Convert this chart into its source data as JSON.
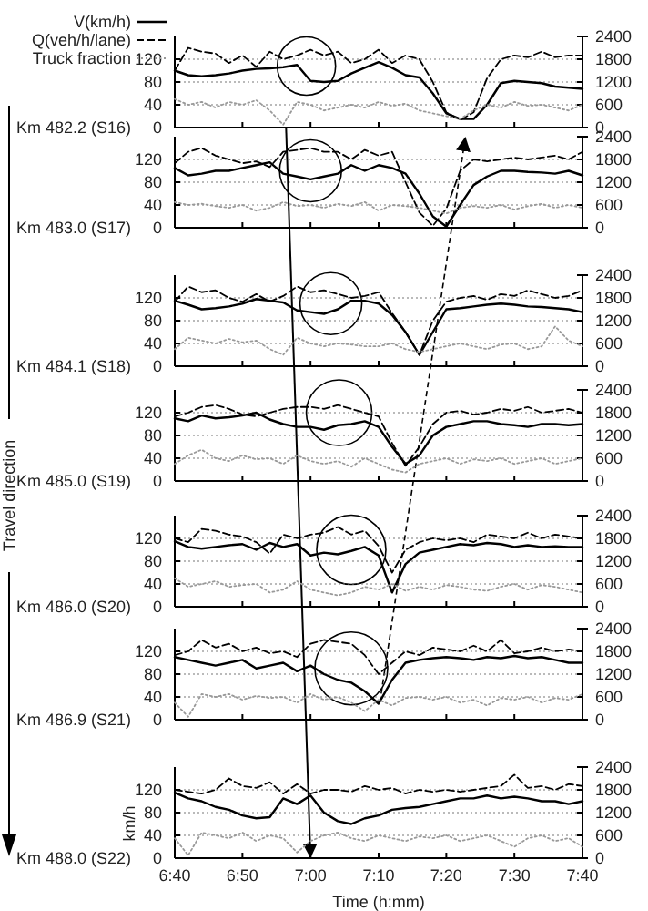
{
  "chart_data": [
    {
      "type": "line",
      "title": "Km 482.2 (S16)",
      "legend": "top left",
      "annotations": [
        "Travel direction"
      ],
      "grid": "y",
      "tick_labels": "y",
      "xlim": [
        6.667,
        7.667
      ],
      "xticks": [
        {
          "value": 6.667,
          "label": null
        },
        {
          "value": 6.833,
          "label": null
        },
        {
          "value": 7,
          "label": null
        },
        {
          "value": 7.167,
          "label": null
        },
        {
          "value": 7.333,
          "label": null
        },
        {
          "value": 7.5,
          "label": null
        },
        {
          "value": 7.667,
          "label": null
        }
      ],
      "ylim": [
        0,
        160
      ],
      "yticks": [
        0,
        40,
        80,
        120
      ],
      "y2lim": [
        0,
        2400
      ],
      "y2ticks": [
        0,
        600,
        1200,
        1800,
        2400
      ],
      "x": [
        6.667,
        6.7,
        6.733,
        6.767,
        6.8,
        6.833,
        6.867,
        6.9,
        6.933,
        6.967,
        7,
        7.033,
        7.067,
        7.1,
        7.133,
        7.167,
        7.2,
        7.233,
        7.267,
        7.3,
        7.333,
        7.367,
        7.4,
        7.433,
        7.467,
        7.5,
        7.533,
        7.567,
        7.6,
        7.633,
        7.667
      ],
      "series": [
        {
          "name": "V(km/h)",
          "color": "#000000",
          "line_style": "solid",
          "values": [
            100,
            92,
            90,
            92,
            95,
            100,
            103,
            104,
            106,
            110,
            82,
            80,
            82,
            95,
            105,
            115,
            105,
            92,
            88,
            60,
            25,
            15,
            15,
            40,
            78,
            82,
            80,
            78,
            72,
            70,
            68
          ]
        },
        {
          "name": "Q(veh/h/lane)",
          "color": "#000000",
          "line_style": "dashed",
          "axis": "y2",
          "values": [
            1500,
            2100,
            2000,
            1950,
            1700,
            1900,
            1600,
            2000,
            1800,
            1900,
            2050,
            1900,
            2000,
            1700,
            1800,
            2050,
            1700,
            1900,
            1800,
            1200,
            400,
            200,
            400,
            1300,
            1800,
            1900,
            1850,
            2000,
            1850,
            1900,
            1900
          ]
        },
        {
          "name": "Truck fraction",
          "color": "#999999",
          "line_style": "dotted",
          "values": [
            50,
            40,
            45,
            35,
            45,
            40,
            48,
            30,
            5,
            45,
            40,
            30,
            35,
            40,
            35,
            45,
            38,
            42,
            30,
            25,
            20,
            15,
            30,
            40,
            35,
            45,
            38,
            40,
            35,
            30,
            40
          ]
        }
      ]
    },
    {
      "type": "line",
      "title": "Km 483.0 (S17)",
      "grid": "y",
      "tick_labels": "y",
      "xlim": [
        6.667,
        7.667
      ],
      "xticks": [
        {
          "value": 6.667,
          "label": null
        },
        {
          "value": 6.833,
          "label": null
        },
        {
          "value": 7,
          "label": null
        },
        {
          "value": 7.167,
          "label": null
        },
        {
          "value": 7.333,
          "label": null
        },
        {
          "value": 7.5,
          "label": null
        },
        {
          "value": 7.667,
          "label": null
        }
      ],
      "ylim": [
        0,
        160
      ],
      "yticks": [
        0,
        40,
        80,
        120
      ],
      "y2lim": [
        0,
        2400
      ],
      "y2ticks": [
        0,
        600,
        1200,
        1800,
        2400
      ],
      "x": [
        6.667,
        6.7,
        6.733,
        6.767,
        6.8,
        6.833,
        6.867,
        6.9,
        6.933,
        6.967,
        7,
        7.033,
        7.067,
        7.1,
        7.133,
        7.167,
        7.2,
        7.233,
        7.267,
        7.3,
        7.333,
        7.367,
        7.4,
        7.433,
        7.467,
        7.5,
        7.533,
        7.567,
        7.6,
        7.633,
        7.667
      ],
      "series": [
        {
          "color": "#000000",
          "line_style": "solid",
          "values": [
            105,
            92,
            95,
            100,
            100,
            105,
            110,
            115,
            95,
            90,
            85,
            90,
            95,
            110,
            100,
            110,
            105,
            95,
            60,
            20,
            2,
            40,
            75,
            90,
            100,
            100,
            98,
            97,
            95,
            100,
            92
          ]
        },
        {
          "color": "#000000",
          "line_style": "dashed",
          "axis": "y2",
          "values": [
            1700,
            2000,
            2100,
            1900,
            1800,
            1700,
            1750,
            1600,
            2000,
            2050,
            2100,
            2000,
            2000,
            1800,
            2050,
            1900,
            2000,
            1200,
            400,
            50,
            500,
            1500,
            1800,
            1750,
            1800,
            1850,
            1800,
            1850,
            1900,
            1800,
            2000
          ]
        },
        {
          "color": "#999999",
          "line_style": "dotted",
          "values": [
            45,
            40,
            42,
            38,
            35,
            40,
            30,
            35,
            45,
            38,
            40,
            35,
            42,
            38,
            45,
            30,
            40,
            38,
            35,
            30,
            25,
            35,
            38,
            35,
            40,
            32,
            38,
            42,
            35,
            40,
            35
          ]
        }
      ]
    },
    {
      "type": "line",
      "title": "Km 484.1 (S18)",
      "grid": "y",
      "tick_labels": "y",
      "xlim": [
        6.667,
        7.667
      ],
      "xticks": [
        {
          "value": 6.667,
          "label": null
        },
        {
          "value": 6.833,
          "label": null
        },
        {
          "value": 7,
          "label": null
        },
        {
          "value": 7.167,
          "label": null
        },
        {
          "value": 7.333,
          "label": null
        },
        {
          "value": 7.5,
          "label": null
        },
        {
          "value": 7.667,
          "label": null
        }
      ],
      "ylim": [
        0,
        160
      ],
      "yticks": [
        0,
        40,
        80,
        120
      ],
      "y2lim": [
        0,
        2400
      ],
      "y2ticks": [
        0,
        600,
        1200,
        1800,
        2400
      ],
      "x": [
        6.667,
        6.7,
        6.733,
        6.767,
        6.8,
        6.833,
        6.867,
        6.9,
        6.933,
        6.967,
        7,
        7.033,
        7.067,
        7.1,
        7.133,
        7.167,
        7.2,
        7.233,
        7.267,
        7.3,
        7.333,
        7.367,
        7.4,
        7.433,
        7.467,
        7.5,
        7.533,
        7.567,
        7.6,
        7.633,
        7.667
      ],
      "series": [
        {
          "color": "#000000",
          "line_style": "solid",
          "values": [
            115,
            108,
            100,
            102,
            105,
            110,
            118,
            115,
            112,
            98,
            95,
            92,
            100,
            115,
            115,
            110,
            90,
            60,
            20,
            60,
            100,
            102,
            105,
            108,
            110,
            108,
            105,
            104,
            102,
            100,
            95
          ]
        },
        {
          "color": "#000000",
          "line_style": "dashed",
          "axis": "y2",
          "values": [
            1700,
            2100,
            1950,
            2000,
            1800,
            1700,
            1900,
            1700,
            1850,
            2100,
            1950,
            2000,
            1900,
            1800,
            1850,
            1950,
            1400,
            900,
            300,
            1200,
            1700,
            1800,
            1850,
            1750,
            1900,
            1850,
            2000,
            1900,
            1800,
            1850,
            2000
          ]
        },
        {
          "color": "#999999",
          "line_style": "dotted",
          "values": [
            30,
            50,
            45,
            40,
            48,
            42,
            45,
            30,
            20,
            50,
            40,
            35,
            40,
            38,
            35,
            35,
            40,
            30,
            25,
            30,
            35,
            40,
            35,
            30,
            38,
            40,
            30,
            35,
            70,
            45,
            35
          ]
        }
      ]
    },
    {
      "type": "line",
      "title": "Km 485.0 (S19)",
      "grid": "y",
      "tick_labels": "y",
      "xlim": [
        6.667,
        7.667
      ],
      "xticks": [
        {
          "value": 6.667,
          "label": null
        },
        {
          "value": 6.833,
          "label": null
        },
        {
          "value": 7,
          "label": null
        },
        {
          "value": 7.167,
          "label": null
        },
        {
          "value": 7.333,
          "label": null
        },
        {
          "value": 7.5,
          "label": null
        },
        {
          "value": 7.667,
          "label": null
        }
      ],
      "ylim": [
        0,
        160
      ],
      "yticks": [
        0,
        40,
        80,
        120
      ],
      "y2lim": [
        0,
        2400
      ],
      "y2ticks": [
        0,
        600,
        1200,
        1800,
        2400
      ],
      "x": [
        6.667,
        6.7,
        6.733,
        6.767,
        6.8,
        6.833,
        6.867,
        6.9,
        6.933,
        6.967,
        7,
        7.033,
        7.067,
        7.1,
        7.133,
        7.167,
        7.2,
        7.233,
        7.267,
        7.3,
        7.333,
        7.367,
        7.4,
        7.433,
        7.467,
        7.5,
        7.533,
        7.567,
        7.6,
        7.633,
        7.667
      ],
      "series": [
        {
          "color": "#000000",
          "line_style": "solid",
          "values": [
            110,
            105,
            115,
            110,
            112,
            115,
            120,
            108,
            100,
            95,
            95,
            90,
            98,
            100,
            105,
            95,
            60,
            30,
            45,
            80,
            95,
            100,
            105,
            105,
            100,
            98,
            95,
            100,
            100,
            98,
            100
          ]
        },
        {
          "color": "#000000",
          "line_style": "dashed",
          "axis": "y2",
          "values": [
            1700,
            1800,
            1950,
            2000,
            1900,
            1750,
            1700,
            1800,
            1900,
            1950,
            1950,
            1900,
            2000,
            1900,
            1800,
            1700,
            1000,
            400,
            900,
            1500,
            1800,
            1850,
            1750,
            1800,
            1900,
            1850,
            1950,
            1800,
            1850,
            1900,
            1800
          ]
        },
        {
          "color": "#999999",
          "line_style": "dotted",
          "values": [
            30,
            45,
            55,
            40,
            35,
            45,
            38,
            40,
            30,
            45,
            35,
            30,
            35,
            25,
            40,
            30,
            20,
            15,
            30,
            35,
            40,
            30,
            38,
            35,
            40,
            30,
            35,
            40,
            30,
            35,
            40
          ]
        }
      ]
    },
    {
      "type": "line",
      "title": "Km 486.0 (S20)",
      "grid": "y",
      "tick_labels": "y",
      "xlim": [
        6.667,
        7.667
      ],
      "xticks": [
        {
          "value": 6.667,
          "label": null
        },
        {
          "value": 6.833,
          "label": null
        },
        {
          "value": 7,
          "label": null
        },
        {
          "value": 7.167,
          "label": null
        },
        {
          "value": 7.333,
          "label": null
        },
        {
          "value": 7.5,
          "label": null
        },
        {
          "value": 7.667,
          "label": null
        }
      ],
      "ylim": [
        0,
        160
      ],
      "yticks": [
        0,
        40,
        80,
        120
      ],
      "y2lim": [
        0,
        2400
      ],
      "y2ticks": [
        0,
        600,
        1200,
        1800,
        2400
      ],
      "x": [
        6.667,
        6.7,
        6.733,
        6.767,
        6.8,
        6.833,
        6.867,
        6.9,
        6.933,
        6.967,
        7,
        7.033,
        7.067,
        7.1,
        7.133,
        7.167,
        7.2,
        7.233,
        7.267,
        7.3,
        7.333,
        7.367,
        7.4,
        7.433,
        7.467,
        7.5,
        7.533,
        7.567,
        7.6,
        7.633,
        7.667
      ],
      "series": [
        {
          "color": "#000000",
          "line_style": "solid",
          "values": [
            115,
            105,
            102,
            105,
            108,
            110,
            100,
            112,
            105,
            110,
            90,
            95,
            92,
            98,
            105,
            90,
            25,
            75,
            95,
            100,
            105,
            110,
            108,
            112,
            110,
            105,
            108,
            105,
            106,
            105,
            105
          ]
        },
        {
          "color": "#000000",
          "line_style": "dashed",
          "axis": "y2",
          "values": [
            1800,
            1700,
            2050,
            2000,
            1900,
            1850,
            1700,
            1400,
            1900,
            1800,
            1900,
            1950,
            2100,
            1900,
            2000,
            1600,
            900,
            1500,
            1700,
            1800,
            1750,
            1800,
            1700,
            1900,
            1850,
            1800,
            1950,
            1800,
            1900,
            1850,
            1800
          ]
        },
        {
          "color": "#999999",
          "line_style": "dotted",
          "values": [
            50,
            35,
            40,
            45,
            35,
            38,
            40,
            25,
            30,
            45,
            30,
            25,
            20,
            25,
            35,
            30,
            40,
            28,
            35,
            30,
            38,
            35,
            30,
            28,
            35,
            40,
            30,
            38,
            35,
            30,
            25
          ]
        }
      ]
    },
    {
      "type": "line",
      "title": "Km 486.9 (S21)",
      "grid": "y",
      "tick_labels": "y",
      "xlim": [
        6.667,
        7.667
      ],
      "xticks": [
        {
          "value": 6.667,
          "label": null
        },
        {
          "value": 6.833,
          "label": null
        },
        {
          "value": 7,
          "label": null
        },
        {
          "value": 7.167,
          "label": null
        },
        {
          "value": 7.333,
          "label": null
        },
        {
          "value": 7.5,
          "label": null
        },
        {
          "value": 7.667,
          "label": null
        }
      ],
      "ylim": [
        0,
        160
      ],
      "yticks": [
        0,
        40,
        80,
        120
      ],
      "y2lim": [
        0,
        2400
      ],
      "y2ticks": [
        0,
        600,
        1200,
        1800,
        2400
      ],
      "x": [
        6.667,
        6.7,
        6.733,
        6.767,
        6.8,
        6.833,
        6.867,
        6.9,
        6.933,
        6.967,
        7,
        7.033,
        7.067,
        7.1,
        7.133,
        7.167,
        7.2,
        7.233,
        7.267,
        7.3,
        7.333,
        7.367,
        7.4,
        7.433,
        7.467,
        7.5,
        7.533,
        7.567,
        7.6,
        7.633,
        7.667
      ],
      "series": [
        {
          "color": "#000000",
          "line_style": "solid",
          "values": [
            110,
            105,
            100,
            95,
            100,
            105,
            90,
            95,
            100,
            85,
            95,
            80,
            70,
            65,
            50,
            28,
            70,
            100,
            105,
            108,
            110,
            108,
            105,
            110,
            108,
            112,
            108,
            110,
            105,
            100,
            100
          ]
        },
        {
          "color": "#000000",
          "line_style": "dashed",
          "axis": "y2",
          "values": [
            1700,
            1800,
            2100,
            1900,
            2000,
            1800,
            1900,
            1750,
            1800,
            1650,
            2000,
            2100,
            2050,
            2000,
            1700,
            1200,
            1500,
            1800,
            1700,
            1900,
            1850,
            1800,
            1950,
            1800,
            2100,
            1750,
            1800,
            1900,
            1800,
            1850,
            1800
          ]
        },
        {
          "color": "#999999",
          "line_style": "dotted",
          "values": [
            30,
            5,
            45,
            40,
            45,
            35,
            42,
            38,
            40,
            30,
            45,
            35,
            40,
            30,
            15,
            35,
            25,
            38,
            40,
            35,
            40,
            30,
            35,
            25,
            38,
            35,
            40,
            30,
            38,
            35,
            45
          ]
        }
      ]
    },
    {
      "type": "line",
      "title": "Km 488.0 (S22)",
      "xlabel": "Time (h:mm)",
      "ylabel": "km/h",
      "grid": "y",
      "xlim": [
        6.667,
        7.667
      ],
      "xticks": [
        {
          "value": 6.667,
          "label": "6:40"
        },
        {
          "value": 6.833,
          "label": "6:50"
        },
        {
          "value": 7,
          "label": "7:00"
        },
        {
          "value": 7.167,
          "label": "7:10"
        },
        {
          "value": 7.333,
          "label": "7:20"
        },
        {
          "value": 7.5,
          "label": "7:30"
        },
        {
          "value": 7.667,
          "label": "7:40"
        }
      ],
      "ylim": [
        0,
        160
      ],
      "yticks": [
        0,
        40,
        80,
        120
      ],
      "y2lim": [
        0,
        2400
      ],
      "y2ticks": [
        0,
        600,
        1200,
        1800,
        2400
      ],
      "x": [
        6.667,
        6.7,
        6.733,
        6.767,
        6.8,
        6.833,
        6.867,
        6.9,
        6.933,
        6.967,
        7,
        7.033,
        7.067,
        7.1,
        7.133,
        7.167,
        7.2,
        7.233,
        7.267,
        7.3,
        7.333,
        7.367,
        7.4,
        7.433,
        7.467,
        7.5,
        7.533,
        7.567,
        7.6,
        7.633,
        7.667
      ],
      "series": [
        {
          "color": "#000000",
          "line_style": "solid",
          "values": [
            115,
            105,
            100,
            90,
            85,
            75,
            70,
            72,
            105,
            95,
            110,
            80,
            65,
            60,
            70,
            75,
            85,
            88,
            90,
            95,
            100,
            105,
            105,
            110,
            105,
            108,
            105,
            100,
            100,
            95,
            100
          ]
        },
        {
          "color": "#000000",
          "line_style": "dashed",
          "axis": "y2",
          "values": [
            1800,
            1750,
            1700,
            1800,
            2100,
            1900,
            1850,
            2000,
            1700,
            1950,
            1700,
            1800,
            1800,
            1750,
            1900,
            1800,
            1850,
            1700,
            1800,
            1750,
            1800,
            1750,
            1800,
            1850,
            1900,
            2200,
            1850,
            1900,
            1800,
            1950,
            1900
          ]
        },
        {
          "color": "#999999",
          "line_style": "dotted",
          "values": [
            35,
            5,
            45,
            40,
            35,
            45,
            30,
            40,
            35,
            10,
            30,
            40,
            45,
            35,
            30,
            40,
            35,
            30,
            38,
            35,
            40,
            30,
            35,
            40,
            30,
            20,
            35,
            40,
            30,
            35,
            20
          ]
        }
      ]
    }
  ]
}
